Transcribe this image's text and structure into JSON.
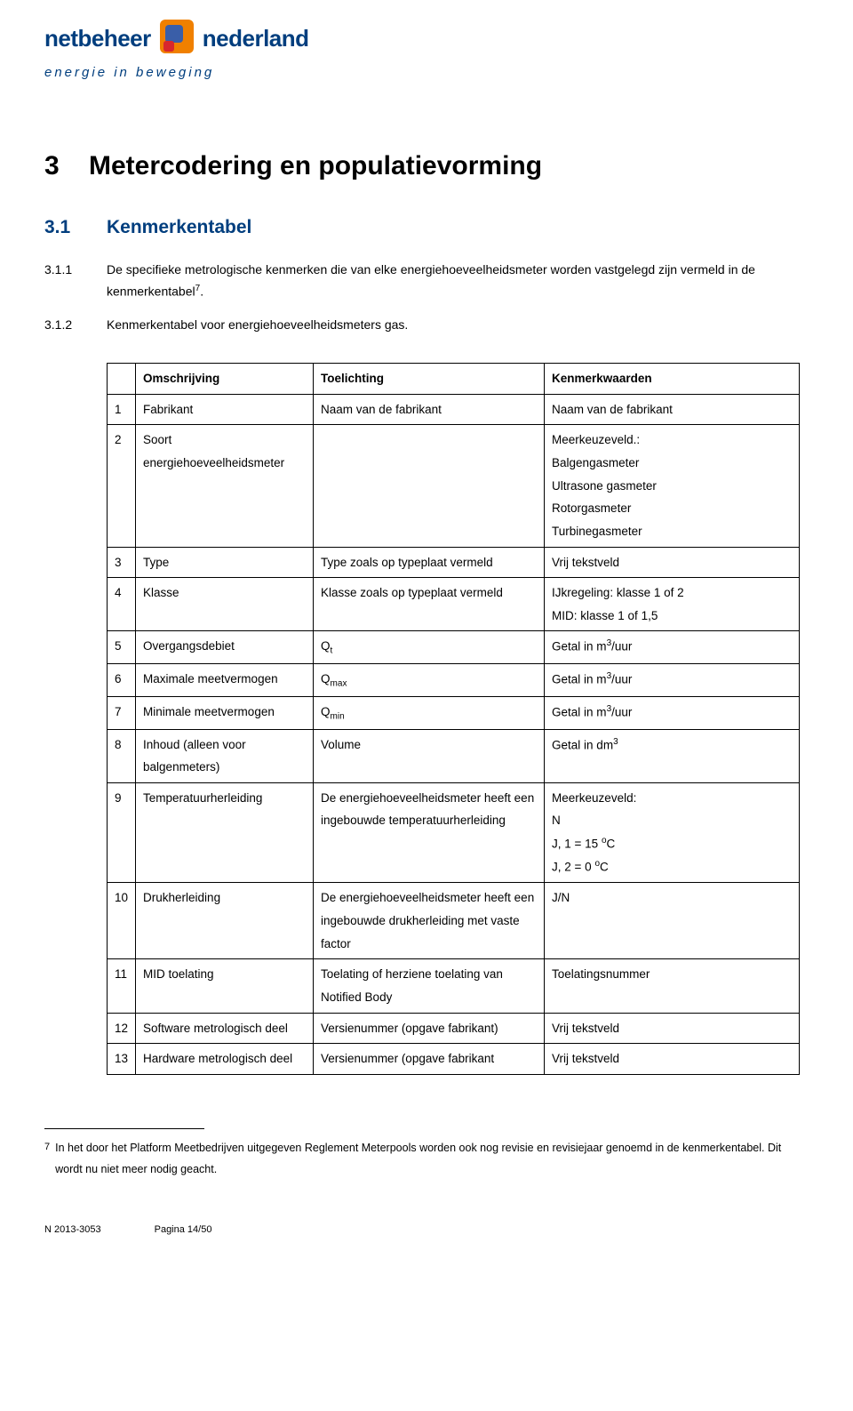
{
  "logo": {
    "left": "netbeheer",
    "right": "nederland",
    "tagline": "energie in beweging",
    "colors": {
      "brand_blue": "#003e7e",
      "logo_orange": "#f08000",
      "logo_blue": "#3a5ea8",
      "logo_red": "#d8272d"
    }
  },
  "chapter": {
    "num": "3",
    "title": "Metercodering en populatievorming"
  },
  "section": {
    "num": "3.1",
    "title": "Kenmerkentabel"
  },
  "paras": [
    {
      "num": "3.1.1",
      "text": "De specifieke metrologische kenmerken die van elke energiehoeveelheidsmeter worden vastgelegd zijn vermeld in de kenmerkentabel",
      "sup": "7",
      "suffix": "."
    },
    {
      "num": "3.1.2",
      "text": "Kenmerkentabel voor energiehoeveelheidsmeters gas."
    }
  ],
  "table": {
    "headers": [
      "",
      "Omschrijving",
      "Toelichting",
      "Kenmerkwaarden"
    ],
    "rows": [
      {
        "n": "1",
        "desc": "Fabrikant",
        "expl": "Naam van de fabrikant",
        "val": "Naam van de fabrikant"
      },
      {
        "n": "2",
        "desc": "Soort energiehoeveelheidsmeter",
        "expl": "",
        "val": "Meerkeuzeveld.:\nBalgengasmeter\nUltrasone gasmeter\nRotorgasmeter\nTurbinegasmeter"
      },
      {
        "n": "3",
        "desc": "Type",
        "expl": "Type zoals op typeplaat vermeld",
        "val": "Vrij tekstveld"
      },
      {
        "n": "4",
        "desc": "Klasse",
        "expl": "Klasse zoals op typeplaat vermeld",
        "val": "IJkregeling: klasse 1 of 2\nMID: klasse 1 of 1,5"
      },
      {
        "n": "5",
        "desc": "Overgangsdebiet",
        "expl": "Q<sub>t</sub>",
        "val": "Getal in m<sup>3</sup>/uur"
      },
      {
        "n": "6",
        "desc": "Maximale meetvermogen",
        "expl": "Q<sub>max</sub>",
        "val": "Getal in m<sup>3</sup>/uur"
      },
      {
        "n": "7",
        "desc": "Minimale meetvermogen",
        "expl": "Q<sub>min</sub>",
        "val": "Getal in m<sup>3</sup>/uur"
      },
      {
        "n": "8",
        "desc": "Inhoud (alleen voor balgenmeters)",
        "expl": "Volume",
        "val": "Getal in dm<sup>3</sup>"
      },
      {
        "n": "9",
        "desc": "Temperatuurherleiding",
        "expl": "De energiehoeveelheidsmeter heeft een ingebouwde temperatuurherleiding",
        "val": "Meerkeuzeveld:\nN\nJ, 1 = 15 <sup>o</sup>C\nJ, 2 = 0 <sup>o</sup>C"
      },
      {
        "n": "10",
        "desc": "Drukherleiding",
        "expl": "De energiehoeveelheidsmeter heeft een ingebouwde drukherleiding met vaste factor",
        "val": "J/N"
      },
      {
        "n": "11",
        "desc": "MID toelating",
        "expl": "Toelating of herziene toelating van Notified Body",
        "val": "Toelatingsnummer"
      },
      {
        "n": "12",
        "desc": "Software metrologisch deel",
        "expl": "Versienummer (opgave fabrikant)",
        "val": "Vrij tekstveld"
      },
      {
        "n": "13",
        "desc": "Hardware metrologisch deel",
        "expl": "Versienummer (opgave fabrikant",
        "val": "Vrij tekstveld"
      }
    ]
  },
  "footnote": {
    "num": "7",
    "text": "In het door het Platform Meetbedrijven uitgegeven Reglement Meterpools worden ook nog revisie en revisiejaar genoemd in de kenmerkentabel. Dit wordt nu niet meer nodig geacht."
  },
  "footer": {
    "left": "N 2013-3053",
    "right": "Pagina 14/50"
  }
}
